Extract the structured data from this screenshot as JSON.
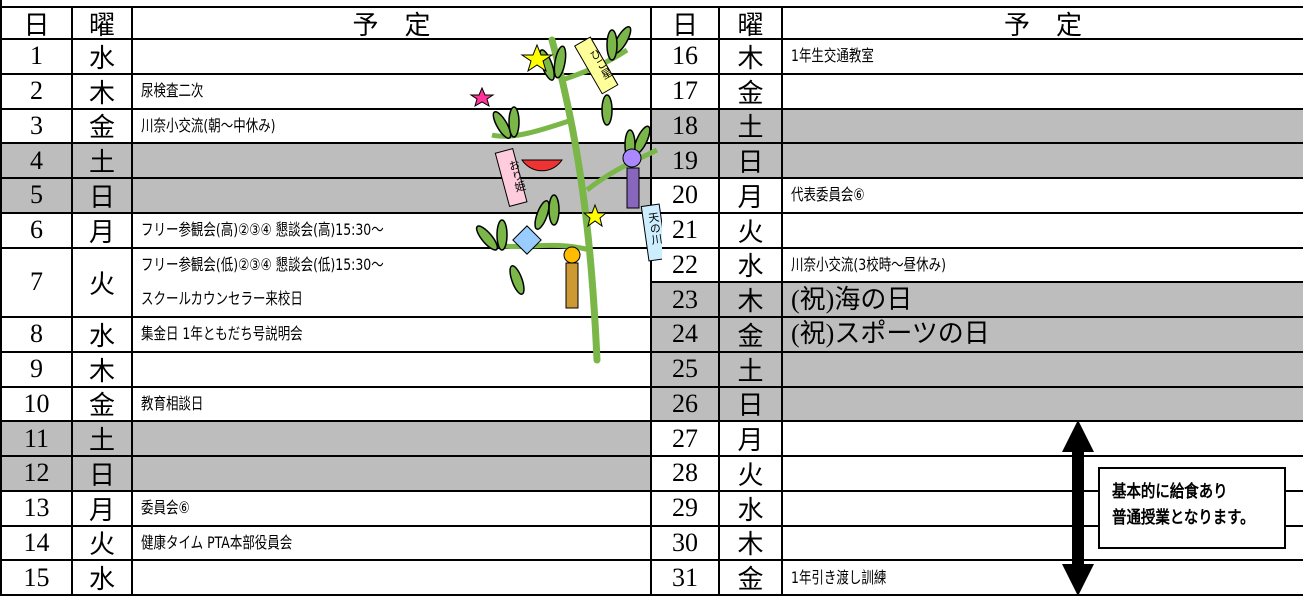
{
  "header": {
    "day": "日",
    "weekday": "曜",
    "plan": "予　定"
  },
  "decoration": {
    "tags": [
      "ひこ星",
      "おり姫",
      "天の川"
    ]
  },
  "left_rows": [
    {
      "day": "1",
      "weekday": "水"
    },
    {
      "day": "2",
      "weekday": "木",
      "plan_lines": [
        "尿検査二次"
      ]
    },
    {
      "day": "3",
      "weekday": "金",
      "plan_lines": [
        "川奈小交流(朝～中休み)"
      ]
    },
    {
      "day": "4",
      "weekday": "土",
      "shaded": true
    },
    {
      "day": "5",
      "weekday": "日",
      "shaded": true
    },
    {
      "day": "6",
      "weekday": "月",
      "plan_lines": [
        "フリー参観会(高)②③④ 懇談会(高)15:30～"
      ]
    },
    {
      "day": "7",
      "weekday": "火",
      "plan_lines": [
        "フリー参観会(低)②③④ 懇談会(低)15:30～",
        "スクールカウンセラー来校日"
      ]
    },
    {
      "day": "8",
      "weekday": "水",
      "plan_lines": [
        "集金日 1年ともだち号説明会"
      ]
    },
    {
      "day": "9",
      "weekday": "木"
    },
    {
      "day": "10",
      "weekday": "金",
      "plan_lines": [
        "教育相談日"
      ]
    },
    {
      "day": "11",
      "weekday": "土",
      "shaded": true
    },
    {
      "day": "12",
      "weekday": "日",
      "shaded": true
    },
    {
      "day": "13",
      "weekday": "月",
      "plan_lines": [
        "委員会⑥"
      ]
    },
    {
      "day": "14",
      "weekday": "火",
      "plan_lines": [
        "健康タイム PTA本部役員会"
      ]
    },
    {
      "day": "15",
      "weekday": "水"
    }
  ],
  "right_rows": [
    {
      "day": "16",
      "weekday": "木",
      "plan_lines": [
        "1年生交通教室"
      ]
    },
    {
      "day": "17",
      "weekday": "金"
    },
    {
      "day": "18",
      "weekday": "土",
      "shaded": true
    },
    {
      "day": "19",
      "weekday": "日",
      "shaded": true
    },
    {
      "day": "20",
      "weekday": "月",
      "plan_lines": [
        "代表委員会⑥"
      ]
    },
    {
      "day": "21",
      "weekday": "火"
    },
    {
      "day": "22",
      "weekday": "水",
      "plan_lines": [
        "川奈小交流(3校時～昼休み)"
      ]
    },
    {
      "day": "23",
      "weekday": "木",
      "shaded": true,
      "holiday": true,
      "plan_lines": [
        "(祝)海の日"
      ]
    },
    {
      "day": "24",
      "weekday": "金",
      "shaded": true,
      "holiday": true,
      "plan_lines": [
        "(祝)スポーツの日"
      ]
    },
    {
      "day": "25",
      "weekday": "土",
      "shaded": true
    },
    {
      "day": "26",
      "weekday": "日",
      "shaded": true
    },
    {
      "day": "27",
      "weekday": "月"
    },
    {
      "day": "28",
      "weekday": "火"
    },
    {
      "day": "29",
      "weekday": "水"
    },
    {
      "day": "30",
      "weekday": "木"
    },
    {
      "day": "31",
      "weekday": "金",
      "plan_lines": [
        "1年引き渡し訓練"
      ]
    }
  ],
  "note": [
    "基本的に給食あり",
    "普通授業となります。"
  ]
}
